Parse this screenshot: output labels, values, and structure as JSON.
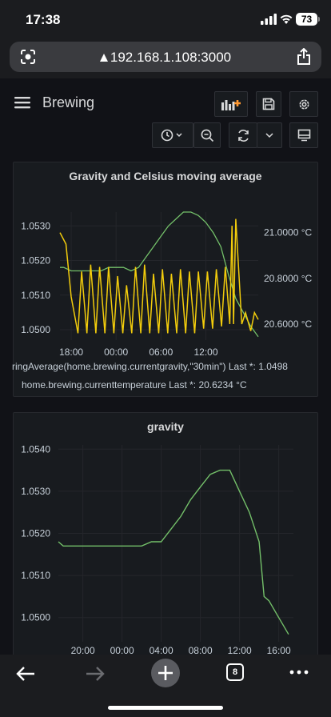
{
  "status": {
    "time": "17:38",
    "battery": "73"
  },
  "browser": {
    "url": "192.168.1.108:3000",
    "tab_count": "8"
  },
  "dashboard": {
    "title": "Brewing"
  },
  "panel1": {
    "title": "Gravity and Celsius moving average",
    "legend": [
      {
        "text": "ringAverage(home.brewing.currentgravity,\"30min\")   Last *: 1.0498",
        "color": "#73bf69"
      },
      {
        "text": "home.brewing.currenttemperature   Last *: 20.6234 °C",
        "color": "#fade2a"
      }
    ]
  },
  "panel2": {
    "title": "gravity"
  },
  "colors": {
    "gravity": "#73bf69",
    "temperature": "#f2cc0c",
    "background": "#111217",
    "panel": "#181b1f"
  },
  "chart_data": [
    {
      "type": "line",
      "title": "Gravity and Celsius moving average",
      "x_ticks": [
        "18:00",
        "00:00",
        "06:00",
        "12:00"
      ],
      "y_left_ticks": [
        "1.0500",
        "1.0510",
        "1.0520",
        "1.0530"
      ],
      "y_right_ticks": [
        "20.6000 °C",
        "20.8000 °C",
        "21.0000 °C"
      ],
      "ylim_left": [
        1.0497,
        1.0534
      ],
      "ylim_right": [
        20.53,
        21.09
      ],
      "grid": true,
      "legend_position": "bottom",
      "series": [
        {
          "name": "ringAverage(home.brewing.currentgravity,\"30min\")",
          "axis": "left",
          "x": [
            16.5,
            17,
            18,
            19,
            20,
            21,
            22,
            23,
            24,
            25,
            26,
            27,
            28,
            29,
            30,
            31,
            32,
            33,
            34,
            35,
            36,
            37,
            38,
            39,
            40,
            41,
            42,
            43
          ],
          "values": [
            1.0518,
            1.0518,
            1.0517,
            1.0517,
            1.0517,
            1.0517,
            1.0517,
            1.0518,
            1.0518,
            1.0518,
            1.0517,
            1.0518,
            1.0521,
            1.0524,
            1.0527,
            1.053,
            1.0532,
            1.0534,
            1.0534,
            1.0533,
            1.0531,
            1.0528,
            1.0524,
            1.0516,
            1.0509,
            1.0505,
            1.0501,
            1.0498
          ]
        },
        {
          "name": "home.brewing.currenttemperature",
          "axis": "right",
          "x": [
            16.5,
            17.3,
            18,
            18.9,
            19.4,
            20.1,
            20.6,
            21.3,
            21.8,
            22.5,
            23,
            23.7,
            24.2,
            24.9,
            25.4,
            26.1,
            26.6,
            27.3,
            27.8,
            28.5,
            29,
            29.7,
            30.2,
            30.9,
            31.4,
            32.1,
            32.6,
            33.3,
            33.8,
            34.5,
            35,
            35.7,
            36.2,
            36.9,
            37.4,
            38.1,
            38.6,
            39.2,
            39.5,
            39.7,
            40,
            40.8,
            41.3,
            42,
            42.5,
            43
          ],
          "values": [
            21.0,
            20.95,
            20.72,
            20.56,
            20.83,
            20.56,
            20.86,
            20.56,
            20.85,
            20.56,
            20.85,
            20.56,
            20.81,
            20.56,
            20.77,
            20.56,
            20.85,
            20.56,
            20.86,
            20.56,
            20.82,
            20.56,
            20.84,
            20.56,
            20.82,
            20.56,
            20.84,
            20.56,
            20.83,
            20.56,
            20.83,
            20.58,
            20.83,
            20.58,
            20.84,
            20.59,
            20.85,
            20.6,
            21.03,
            20.6,
            21.06,
            20.6,
            20.65,
            20.57,
            20.65,
            20.62
          ]
        }
      ]
    },
    {
      "type": "line",
      "title": "gravity",
      "x_ticks": [
        "20:00",
        "00:00",
        "04:00",
        "08:00",
        "12:00",
        "16:00"
      ],
      "y_ticks": [
        "1.0500",
        "1.0510",
        "1.0520",
        "1.0530",
        "1.0540"
      ],
      "ylim": [
        1.0495,
        1.0541
      ],
      "grid": true,
      "series": [
        {
          "x": [
            17.5,
            18,
            19,
            20,
            21,
            22,
            23,
            24,
            25,
            26,
            27,
            28,
            29,
            30,
            31,
            32,
            33,
            34,
            35,
            36,
            37,
            38,
            38.5,
            39,
            39.5,
            40,
            40.5,
            41
          ],
          "values": [
            1.0518,
            1.0517,
            1.0517,
            1.0517,
            1.0517,
            1.0517,
            1.0517,
            1.0517,
            1.0517,
            1.0517,
            1.0518,
            1.0518,
            1.0521,
            1.0524,
            1.0528,
            1.0531,
            1.0534,
            1.0535,
            1.0535,
            1.053,
            1.0525,
            1.0518,
            1.0505,
            1.0504,
            1.0502,
            1.05,
            1.0498,
            1.0496
          ]
        }
      ]
    }
  ]
}
